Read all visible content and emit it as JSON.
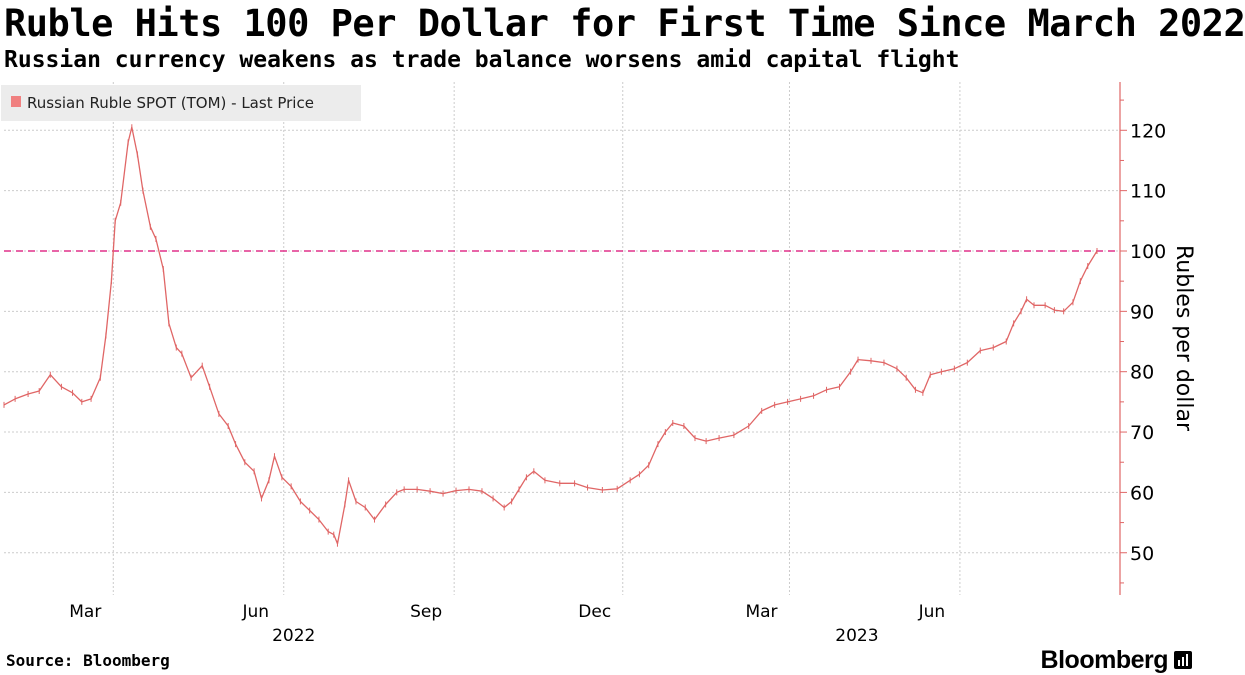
{
  "header": {
    "title": "Ruble Hits 100 Per Dollar for First Time Since March 2022",
    "subtitle": "Russian currency weakens as trade balance worsens amid capital flight"
  },
  "footer": {
    "source": "Source: Bloomberg",
    "brand": "Bloomberg"
  },
  "colors": {
    "series": "#e06666",
    "legend_swatch": "#f08080",
    "threshold": "#e0308a",
    "axis": "#e06666",
    "grid": "#cccccc"
  },
  "chart_data": {
    "type": "line",
    "title": "Ruble Hits 100 Per Dollar for First Time Since March 2022",
    "subtitle": "Russian currency weakens as trade balance worsens amid capital flight",
    "ylabel": "Rubles per dollar",
    "xlabel": "",
    "ylim": [
      43,
      128
    ],
    "y_ticks": [
      50,
      60,
      70,
      80,
      90,
      100,
      110,
      120
    ],
    "x_range": [
      "2022-01-01",
      "2023-08-14"
    ],
    "x_ticks": [
      {
        "date": "2022-03-01",
        "label": "Mar"
      },
      {
        "date": "2022-06-01",
        "label": "Jun"
      },
      {
        "date": "2022-09-01",
        "label": "Sep"
      },
      {
        "date": "2022-12-01",
        "label": "Dec"
      },
      {
        "date": "2023-03-01",
        "label": "Mar"
      },
      {
        "date": "2023-06-01",
        "label": "Jun"
      }
    ],
    "year_labels": [
      {
        "date": "2022-06-01",
        "label": "2022"
      },
      {
        "date": "2023-04-01",
        "label": "2023"
      }
    ],
    "threshold": {
      "value": 100,
      "style": "dashed"
    },
    "legend": {
      "position": "top-left",
      "entries": [
        "Russian Ruble SPOT (TOM) - Last Price"
      ]
    },
    "grid": true,
    "series": [
      {
        "name": "Russian Ruble SPOT (TOM) - Last Price",
        "points": [
          [
            "2022-01-01",
            74.5
          ],
          [
            "2022-01-07",
            75.5
          ],
          [
            "2022-01-14",
            76.3
          ],
          [
            "2022-01-20",
            76.8
          ],
          [
            "2022-01-26",
            79.5
          ],
          [
            "2022-02-01",
            77.5
          ],
          [
            "2022-02-07",
            76.5
          ],
          [
            "2022-02-12",
            75.0
          ],
          [
            "2022-02-17",
            75.5
          ],
          [
            "2022-02-22",
            79.0
          ],
          [
            "2022-02-25",
            86.0
          ],
          [
            "2022-02-28",
            95.0
          ],
          [
            "2022-03-02",
            105.0
          ],
          [
            "2022-03-05",
            108.0
          ],
          [
            "2022-03-09",
            118.0
          ],
          [
            "2022-03-11",
            120.5
          ],
          [
            "2022-03-14",
            116.0
          ],
          [
            "2022-03-17",
            110.0
          ],
          [
            "2022-03-21",
            104.0
          ],
          [
            "2022-03-24",
            102.0
          ],
          [
            "2022-03-28",
            97.0
          ],
          [
            "2022-03-31",
            88.0
          ],
          [
            "2022-04-04",
            84.0
          ],
          [
            "2022-04-07",
            83.0
          ],
          [
            "2022-04-12",
            79.0
          ],
          [
            "2022-04-18",
            81.0
          ],
          [
            "2022-04-22",
            77.5
          ],
          [
            "2022-04-27",
            73.0
          ],
          [
            "2022-05-02",
            71.0
          ],
          [
            "2022-05-06",
            68.0
          ],
          [
            "2022-05-11",
            65.0
          ],
          [
            "2022-05-16",
            63.5
          ],
          [
            "2022-05-20",
            59.0
          ],
          [
            "2022-05-24",
            62.0
          ],
          [
            "2022-05-27",
            66.0
          ],
          [
            "2022-05-31",
            62.5
          ],
          [
            "2022-06-05",
            61.0
          ],
          [
            "2022-06-10",
            58.5
          ],
          [
            "2022-06-15",
            57.0
          ],
          [
            "2022-06-20",
            55.5
          ],
          [
            "2022-06-25",
            53.5
          ],
          [
            "2022-06-28",
            53.0
          ],
          [
            "2022-06-30",
            51.5
          ],
          [
            "2022-07-04",
            58.0
          ],
          [
            "2022-07-06",
            62.0
          ],
          [
            "2022-07-10",
            58.5
          ],
          [
            "2022-07-15",
            57.5
          ],
          [
            "2022-07-20",
            55.5
          ],
          [
            "2022-07-26",
            58.0
          ],
          [
            "2022-08-01",
            60.0
          ],
          [
            "2022-08-05",
            60.5
          ],
          [
            "2022-08-12",
            60.5
          ],
          [
            "2022-08-19",
            60.2
          ],
          [
            "2022-08-26",
            59.8
          ],
          [
            "2022-09-02",
            60.3
          ],
          [
            "2022-09-09",
            60.5
          ],
          [
            "2022-09-16",
            60.2
          ],
          [
            "2022-09-22",
            59.0
          ],
          [
            "2022-09-28",
            57.5
          ],
          [
            "2022-10-02",
            58.5
          ],
          [
            "2022-10-06",
            60.5
          ],
          [
            "2022-10-10",
            62.5
          ],
          [
            "2022-10-14",
            63.5
          ],
          [
            "2022-10-20",
            62.0
          ],
          [
            "2022-10-28",
            61.5
          ],
          [
            "2022-11-05",
            61.5
          ],
          [
            "2022-11-12",
            60.8
          ],
          [
            "2022-11-20",
            60.4
          ],
          [
            "2022-11-28",
            60.6
          ],
          [
            "2022-12-05",
            62.0
          ],
          [
            "2022-12-10",
            63.0
          ],
          [
            "2022-12-15",
            64.5
          ],
          [
            "2022-12-20",
            68.0
          ],
          [
            "2022-12-24",
            70.0
          ],
          [
            "2022-12-28",
            71.5
          ],
          [
            "2023-01-03",
            71.0
          ],
          [
            "2023-01-09",
            69.0
          ],
          [
            "2023-01-15",
            68.5
          ],
          [
            "2023-01-22",
            69.0
          ],
          [
            "2023-01-30",
            69.5
          ],
          [
            "2023-02-07",
            71.0
          ],
          [
            "2023-02-14",
            73.5
          ],
          [
            "2023-02-21",
            74.5
          ],
          [
            "2023-02-28",
            75.0
          ],
          [
            "2023-03-07",
            75.5
          ],
          [
            "2023-03-14",
            76.0
          ],
          [
            "2023-03-21",
            77.0
          ],
          [
            "2023-03-28",
            77.5
          ],
          [
            "2023-04-03",
            80.0
          ],
          [
            "2023-04-07",
            82.0
          ],
          [
            "2023-04-14",
            81.8
          ],
          [
            "2023-04-21",
            81.5
          ],
          [
            "2023-04-28",
            80.5
          ],
          [
            "2023-05-03",
            79.0
          ],
          [
            "2023-05-08",
            77.0
          ],
          [
            "2023-05-12",
            76.5
          ],
          [
            "2023-05-16",
            79.5
          ],
          [
            "2023-05-22",
            80.0
          ],
          [
            "2023-05-29",
            80.5
          ],
          [
            "2023-06-05",
            81.5
          ],
          [
            "2023-06-12",
            83.5
          ],
          [
            "2023-06-19",
            84.0
          ],
          [
            "2023-06-26",
            85.0
          ],
          [
            "2023-06-30",
            88.0
          ],
          [
            "2023-07-04",
            90.0
          ],
          [
            "2023-07-07",
            92.0
          ],
          [
            "2023-07-11",
            91.0
          ],
          [
            "2023-07-17",
            91.0
          ],
          [
            "2023-07-22",
            90.2
          ],
          [
            "2023-07-27",
            90.0
          ],
          [
            "2023-08-01",
            91.5
          ],
          [
            "2023-08-05",
            95.0
          ],
          [
            "2023-08-09",
            97.5
          ],
          [
            "2023-08-14",
            100.0
          ]
        ]
      }
    ]
  }
}
